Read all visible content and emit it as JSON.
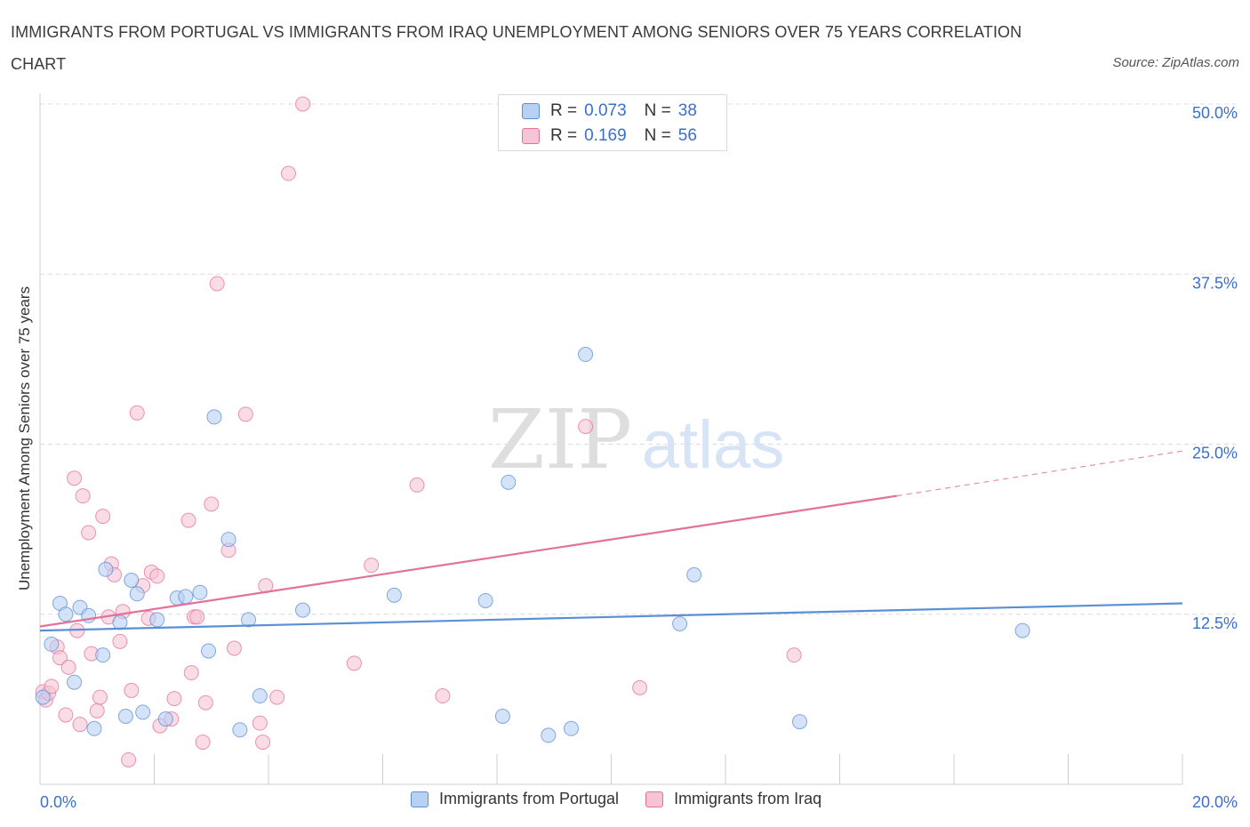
{
  "title": "IMMIGRANTS FROM PORTUGAL VS IMMIGRANTS FROM IRAQ UNEMPLOYMENT AMONG SENIORS OVER 75 YEARS CORRELATION CHART",
  "source": "Source: ZipAtlas.com",
  "watermark": {
    "zip": "ZIP",
    "atlas": "atlas"
  },
  "legend": {
    "portugal": {
      "r_label": "R =",
      "r_value": "0.073",
      "n_label": "N =",
      "n_value": "38"
    },
    "iraq": {
      "r_label": "R =",
      "r_value": "0.169",
      "n_label": "N =",
      "n_value": "56"
    }
  },
  "chart_data": {
    "type": "scatter",
    "title": "IMMIGRANTS FROM PORTUGAL VS IMMIGRANTS FROM IRAQ UNEMPLOYMENT AMONG SENIORS OVER 75 YEARS CORRELATION CHART",
    "xlabel": "",
    "ylabel": "Unemployment Among Seniors over 75 years",
    "xlim": [
      0,
      20
    ],
    "ylim": [
      0,
      50
    ],
    "x_tick_labels": [
      "0.0%",
      "20.0%"
    ],
    "y_ticks": [
      12.5,
      25,
      37.5,
      50
    ],
    "y_tick_labels": [
      "12.5%",
      "25.0%",
      "37.5%",
      "50.0%"
    ],
    "grid": true,
    "legend_position": "top-center",
    "series": [
      {
        "name": "Immigrants from Portugal",
        "color": "#5b8fd6",
        "fill": "#b8d0f2",
        "trend": {
          "x0": 0,
          "y0": 11.3,
          "x1": 20,
          "y1": 13.3
        },
        "points": [
          [
            0.05,
            6.4
          ],
          [
            0.2,
            10.3
          ],
          [
            0.35,
            13.3
          ],
          [
            0.45,
            12.5
          ],
          [
            0.6,
            7.5
          ],
          [
            0.7,
            13.0
          ],
          [
            0.85,
            12.4
          ],
          [
            0.95,
            4.1
          ],
          [
            1.1,
            9.5
          ],
          [
            1.15,
            15.8
          ],
          [
            1.4,
            11.9
          ],
          [
            1.5,
            5.0
          ],
          [
            1.6,
            15.0
          ],
          [
            1.7,
            14.0
          ],
          [
            1.8,
            5.3
          ],
          [
            2.05,
            12.1
          ],
          [
            2.2,
            4.8
          ],
          [
            2.4,
            13.7
          ],
          [
            2.55,
            13.8
          ],
          [
            2.8,
            14.1
          ],
          [
            2.95,
            9.8
          ],
          [
            3.05,
            27.0
          ],
          [
            3.3,
            18.0
          ],
          [
            3.5,
            4.0
          ],
          [
            3.65,
            12.1
          ],
          [
            3.85,
            6.5
          ],
          [
            4.6,
            12.8
          ],
          [
            6.2,
            13.9
          ],
          [
            7.8,
            13.5
          ],
          [
            8.1,
            5.0
          ],
          [
            8.2,
            22.2
          ],
          [
            8.9,
            3.6
          ],
          [
            9.3,
            4.1
          ],
          [
            9.55,
            31.6
          ],
          [
            11.2,
            11.8
          ],
          [
            11.45,
            15.4
          ],
          [
            13.3,
            4.6
          ],
          [
            17.2,
            11.3
          ]
        ]
      },
      {
        "name": "Immigrants from Iraq",
        "color": "#e3719a",
        "fill": "#f7c4d5",
        "trend": {
          "x0": 0,
          "y0": 11.6,
          "x1": 15.0,
          "y1": 21.2
        },
        "trend_dashed": {
          "x0": 15.0,
          "y0": 21.2,
          "x1": 20,
          "y1": 24.5
        },
        "points": [
          [
            0.05,
            6.8
          ],
          [
            0.1,
            6.2
          ],
          [
            0.15,
            6.7
          ],
          [
            0.2,
            7.2
          ],
          [
            0.3,
            10.1
          ],
          [
            0.35,
            9.3
          ],
          [
            0.45,
            5.1
          ],
          [
            0.5,
            8.6
          ],
          [
            0.6,
            22.5
          ],
          [
            0.65,
            11.3
          ],
          [
            0.7,
            4.4
          ],
          [
            0.75,
            21.2
          ],
          [
            0.85,
            18.5
          ],
          [
            0.9,
            9.6
          ],
          [
            1.0,
            5.4
          ],
          [
            1.05,
            6.4
          ],
          [
            1.1,
            19.7
          ],
          [
            1.2,
            12.3
          ],
          [
            1.25,
            16.2
          ],
          [
            1.3,
            15.4
          ],
          [
            1.4,
            10.5
          ],
          [
            1.45,
            12.7
          ],
          [
            1.55,
            1.8
          ],
          [
            1.6,
            6.9
          ],
          [
            1.7,
            27.3
          ],
          [
            1.8,
            14.6
          ],
          [
            1.9,
            12.2
          ],
          [
            1.95,
            15.6
          ],
          [
            2.05,
            15.3
          ],
          [
            2.1,
            4.3
          ],
          [
            2.3,
            4.8
          ],
          [
            2.35,
            6.3
          ],
          [
            2.6,
            19.4
          ],
          [
            2.65,
            8.2
          ],
          [
            2.7,
            12.3
          ],
          [
            2.75,
            12.3
          ],
          [
            2.85,
            3.1
          ],
          [
            2.9,
            6.0
          ],
          [
            3.0,
            20.6
          ],
          [
            3.1,
            36.8
          ],
          [
            3.3,
            17.2
          ],
          [
            3.4,
            10.0
          ],
          [
            3.6,
            27.2
          ],
          [
            3.85,
            4.5
          ],
          [
            3.9,
            3.1
          ],
          [
            3.95,
            14.6
          ],
          [
            4.15,
            6.4
          ],
          [
            4.35,
            44.9
          ],
          [
            4.6,
            50.0
          ],
          [
            5.5,
            8.9
          ],
          [
            5.8,
            16.1
          ],
          [
            6.6,
            22.0
          ],
          [
            7.05,
            6.5
          ],
          [
            9.55,
            26.3
          ],
          [
            10.5,
            7.1
          ],
          [
            13.2,
            9.5
          ]
        ]
      }
    ]
  }
}
